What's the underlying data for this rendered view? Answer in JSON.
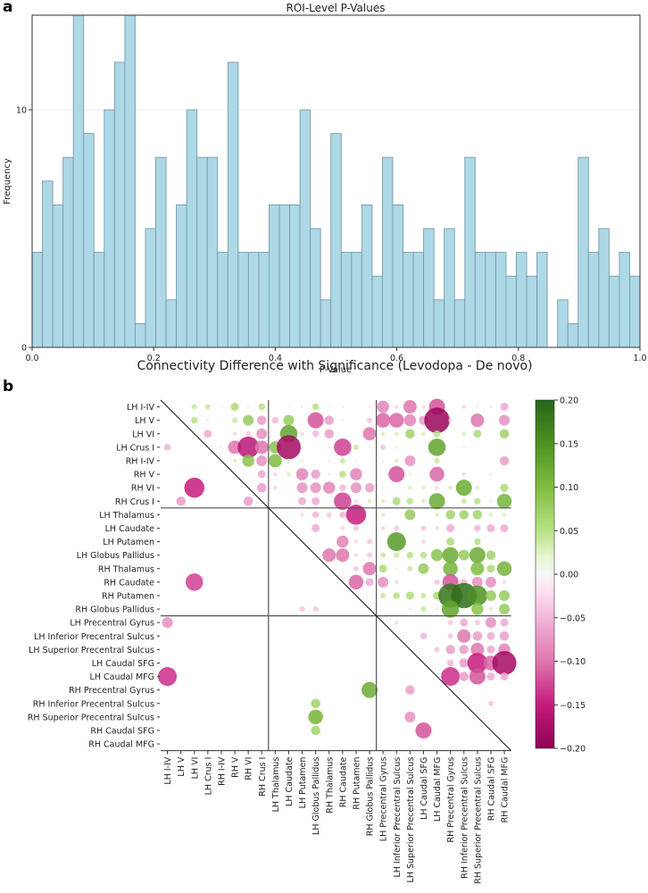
{
  "panels": {
    "a_label": "a",
    "b_label": "b"
  },
  "chart_data": [
    {
      "type": "bar",
      "subtype": "histogram",
      "title": "ROI-Level P-Values",
      "xlabel": "P-Value",
      "ylabel": "Frequency",
      "xlim": [
        0.0,
        1.0
      ],
      "ylim": [
        0,
        14
      ],
      "xticks": [
        "0.0",
        "0.2",
        "0.4",
        "0.6",
        "0.8",
        "1.0"
      ],
      "xtick_values": [
        0.0,
        0.2,
        0.4,
        0.6,
        0.8,
        1.0
      ],
      "yticks": [
        "0",
        "10"
      ],
      "ytick_values": [
        0,
        10
      ],
      "grid": "horizontal",
      "bar_color": "#add8e6",
      "edge_color": "#7a9aa8",
      "bin_range": [
        0.0,
        1.0
      ],
      "counts": [
        4,
        7,
        6,
        8,
        14,
        9,
        4,
        10,
        12,
        14,
        1,
        5,
        8,
        2,
        6,
        10,
        8,
        8,
        4,
        12,
        4,
        4,
        4,
        6,
        6,
        6,
        10,
        5,
        2,
        9,
        4,
        4,
        6,
        3,
        8,
        6,
        4,
        4,
        5,
        2,
        5,
        2,
        8,
        4,
        4,
        4,
        3,
        4,
        3,
        4,
        0,
        2,
        1,
        8,
        4,
        5,
        3,
        4,
        3
      ]
    },
    {
      "type": "heatmap",
      "subtype": "bubble-matrix",
      "title": "Connectivity Difference with Significance (Levodopa - De novo)",
      "labels": [
        "LH I-IV",
        "LH V",
        "LH VI",
        "LH Crus I",
        "RH I-IV",
        "RH V",
        "RH VI",
        "RH Crus I",
        "LH Thalamus",
        "LH Caudate",
        "LH Putamen",
        "LH Globus Pallidus",
        "RH Thalamus",
        "RH Caudate",
        "RH Putamen",
        "RH Globus Pallidus",
        "LH Precentral Gyrus",
        "LH Inferior Precentral Sulcus",
        "LH Superior Precentral Sulcus",
        "LH Caudal SFG",
        "LH Caudal MFG",
        "RH Precentral Gyrus",
        "RH Inferior Precentral Sulcus",
        "RH Superior Precentral Sulcus",
        "RH Caudal SFG",
        "RH Caudal MFG"
      ],
      "group_boundaries_after_index": [
        7,
        15
      ],
      "colorbar": {
        "min": -0.2,
        "max": 0.2,
        "ticks": [
          "0.20",
          "0.15",
          "0.10",
          "0.05",
          "0.00",
          "−0.05",
          "−0.10",
          "−0.15",
          "−0.20"
        ],
        "tick_values": [
          0.2,
          0.15,
          0.1,
          0.05,
          0,
          -0.05,
          -0.1,
          -0.15,
          -0.2
        ],
        "colormap": "PiYG"
      },
      "cells": [
        [
          0,
          2,
          0.04
        ],
        [
          0,
          3,
          0.04
        ],
        [
          0,
          4,
          0.01
        ],
        [
          0,
          5,
          0.06
        ],
        [
          0,
          6,
          0.02
        ],
        [
          0,
          7,
          0.05
        ],
        [
          0,
          9,
          -0.01
        ],
        [
          0,
          10,
          -0.02
        ],
        [
          0,
          11,
          0.05
        ],
        [
          0,
          12,
          -0.01
        ],
        [
          0,
          13,
          0.02
        ],
        [
          0,
          15,
          0.02
        ],
        [
          0,
          16,
          -0.09
        ],
        [
          0,
          17,
          -0.03
        ],
        [
          0,
          18,
          -0.1
        ],
        [
          0,
          19,
          -0.03
        ],
        [
          0,
          20,
          -0.12
        ],
        [
          0,
          22,
          -0.03
        ],
        [
          0,
          23,
          -0.02
        ],
        [
          0,
          24,
          0.02
        ],
        [
          0,
          25,
          -0.06
        ],
        [
          1,
          2,
          0.05
        ],
        [
          1,
          3,
          -0.02
        ],
        [
          1,
          5,
          0.04
        ],
        [
          1,
          6,
          0.08
        ],
        [
          1,
          7,
          -0.07
        ],
        [
          1,
          8,
          -0.05
        ],
        [
          1,
          9,
          0.08
        ],
        [
          1,
          11,
          -0.12
        ],
        [
          1,
          12,
          -0.07
        ],
        [
          1,
          13,
          -0.02
        ],
        [
          1,
          15,
          -0.04
        ],
        [
          1,
          16,
          -0.11
        ],
        [
          1,
          17,
          -0.11
        ],
        [
          1,
          18,
          -0.09
        ],
        [
          1,
          19,
          -0.07
        ],
        [
          1,
          20,
          -0.19
        ],
        [
          1,
          21,
          -0.03
        ],
        [
          1,
          23,
          -0.1
        ],
        [
          1,
          25,
          -0.08
        ],
        [
          2,
          3,
          -0.06
        ],
        [
          2,
          5,
          -0.03
        ],
        [
          2,
          6,
          -0.04
        ],
        [
          2,
          7,
          -0.08
        ],
        [
          2,
          9,
          0.13
        ],
        [
          2,
          10,
          -0.03
        ],
        [
          2,
          11,
          -0.05
        ],
        [
          2,
          12,
          -0.07
        ],
        [
          2,
          15,
          -0.1
        ],
        [
          2,
          16,
          0.03
        ],
        [
          2,
          17,
          0.03
        ],
        [
          2,
          18,
          0.07
        ],
        [
          2,
          19,
          0.03
        ],
        [
          2,
          20,
          0.05
        ],
        [
          2,
          22,
          0.03
        ],
        [
          2,
          23,
          0.06
        ],
        [
          2,
          25,
          0.07
        ],
        [
          3,
          0,
          -0.05
        ],
        [
          3,
          4,
          -0.02
        ],
        [
          3,
          5,
          -0.1
        ],
        [
          3,
          6,
          -0.16
        ],
        [
          3,
          7,
          -0.1
        ],
        [
          3,
          8,
          0.09
        ],
        [
          3,
          9,
          -0.18
        ],
        [
          3,
          10,
          0.02
        ],
        [
          3,
          12,
          0.02
        ],
        [
          3,
          13,
          -0.13
        ],
        [
          3,
          14,
          0.04
        ],
        [
          3,
          15,
          0.02
        ],
        [
          3,
          16,
          -0.04
        ],
        [
          3,
          17,
          0.02
        ],
        [
          3,
          20,
          0.13
        ],
        [
          3,
          22,
          -0.02
        ],
        [
          4,
          5,
          0.03
        ],
        [
          4,
          6,
          0.09
        ],
        [
          4,
          7,
          -0.08
        ],
        [
          4,
          8,
          0.1
        ],
        [
          4,
          9,
          0.03
        ],
        [
          4,
          10,
          0.02
        ],
        [
          4,
          12,
          0.02
        ],
        [
          4,
          13,
          0.04
        ],
        [
          4,
          14,
          0.02
        ],
        [
          4,
          16,
          0.02
        ],
        [
          4,
          17,
          0.03
        ],
        [
          4,
          18,
          -0.08
        ],
        [
          4,
          20,
          0.04
        ],
        [
          4,
          25,
          -0.07
        ],
        [
          5,
          7,
          -0.06
        ],
        [
          5,
          8,
          -0.03
        ],
        [
          5,
          9,
          0.03
        ],
        [
          5,
          10,
          -0.09
        ],
        [
          5,
          11,
          -0.07
        ],
        [
          5,
          12,
          -0.02
        ],
        [
          5,
          13,
          0.05
        ],
        [
          5,
          14,
          -0.09
        ],
        [
          5,
          17,
          -0.12
        ],
        [
          5,
          18,
          -0.02
        ],
        [
          5,
          20,
          -0.11
        ],
        [
          5,
          22,
          -0.03
        ],
        [
          5,
          24,
          -0.02
        ],
        [
          6,
          2,
          -0.15
        ],
        [
          6,
          7,
          -0.07
        ],
        [
          6,
          8,
          -0.03
        ],
        [
          6,
          10,
          -0.08
        ],
        [
          6,
          11,
          -0.08
        ],
        [
          6,
          12,
          -0.09
        ],
        [
          6,
          13,
          -0.05
        ],
        [
          6,
          14,
          -0.08
        ],
        [
          6,
          15,
          -0.07
        ],
        [
          6,
          16,
          -0.02
        ],
        [
          6,
          18,
          0.03
        ],
        [
          6,
          19,
          0.03
        ],
        [
          6,
          20,
          -0.03
        ],
        [
          6,
          21,
          0.03
        ],
        [
          6,
          22,
          0.12
        ],
        [
          6,
          23,
          0.03
        ],
        [
          6,
          25,
          0.06
        ],
        [
          7,
          1,
          -0.07
        ],
        [
          7,
          6,
          -0.07
        ],
        [
          7,
          10,
          -0.06
        ],
        [
          7,
          11,
          -0.06
        ],
        [
          7,
          13,
          -0.13
        ],
        [
          7,
          14,
          -0.03
        ],
        [
          7,
          15,
          0.03
        ],
        [
          7,
          16,
          0.03
        ],
        [
          7,
          17,
          0.06
        ],
        [
          7,
          18,
          0.05
        ],
        [
          7,
          19,
          0.03
        ],
        [
          7,
          20,
          0.12
        ],
        [
          7,
          22,
          0.04
        ],
        [
          7,
          23,
          0.05
        ],
        [
          7,
          24,
          0.02
        ],
        [
          7,
          25,
          0.11
        ],
        [
          8,
          10,
          -0.03
        ],
        [
          8,
          11,
          -0.05
        ],
        [
          8,
          12,
          -0.04
        ],
        [
          8,
          13,
          -0.05
        ],
        [
          8,
          14,
          -0.15
        ],
        [
          8,
          16,
          0.03
        ],
        [
          8,
          18,
          0.08
        ],
        [
          8,
          20,
          0.03
        ],
        [
          8,
          21,
          0.07
        ],
        [
          8,
          22,
          0.07
        ],
        [
          8,
          23,
          0.07
        ],
        [
          8,
          24,
          0.03
        ],
        [
          8,
          25,
          0.03
        ],
        [
          9,
          11,
          -0.06
        ],
        [
          9,
          13,
          -0.03
        ],
        [
          9,
          14,
          -0.04
        ],
        [
          9,
          16,
          -0.03
        ],
        [
          9,
          17,
          -0.04
        ],
        [
          9,
          19,
          -0.04
        ],
        [
          9,
          20,
          -0.03
        ],
        [
          9,
          21,
          -0.06
        ],
        [
          9,
          23,
          -0.05
        ],
        [
          9,
          24,
          -0.06
        ],
        [
          9,
          25,
          -0.06
        ],
        [
          10,
          13,
          -0.09
        ],
        [
          10,
          14,
          -0.03
        ],
        [
          10,
          15,
          -0.04
        ],
        [
          10,
          17,
          0.14
        ],
        [
          10,
          19,
          -0.03
        ],
        [
          10,
          21,
          0.06
        ],
        [
          10,
          23,
          0.05
        ],
        [
          11,
          12,
          -0.1
        ],
        [
          11,
          13,
          -0.1
        ],
        [
          11,
          14,
          -0.03
        ],
        [
          11,
          15,
          -0.04
        ],
        [
          11,
          16,
          0.04
        ],
        [
          11,
          17,
          0.04
        ],
        [
          11,
          18,
          0.05
        ],
        [
          11,
          19,
          0.05
        ],
        [
          11,
          20,
          0.09
        ],
        [
          11,
          21,
          0.12
        ],
        [
          11,
          22,
          0.08
        ],
        [
          11,
          23,
          0.12
        ],
        [
          11,
          24,
          0.07
        ],
        [
          12,
          14,
          -0.04
        ],
        [
          12,
          15,
          -0.1
        ],
        [
          12,
          16,
          0.06
        ],
        [
          12,
          17,
          0.02
        ],
        [
          12,
          18,
          0.04
        ],
        [
          12,
          19,
          0.08
        ],
        [
          12,
          21,
          0.11
        ],
        [
          12,
          22,
          0.02
        ],
        [
          12,
          23,
          0.1
        ],
        [
          12,
          24,
          0.06
        ],
        [
          12,
          25,
          0.11
        ],
        [
          13,
          2,
          -0.13
        ],
        [
          13,
          14,
          -0.11
        ],
        [
          13,
          15,
          -0.06
        ],
        [
          13,
          16,
          -0.08
        ],
        [
          13,
          17,
          -0.03
        ],
        [
          13,
          20,
          -0.04
        ],
        [
          13,
          21,
          -0.12
        ],
        [
          13,
          22,
          -0.05
        ],
        [
          13,
          23,
          -0.08
        ],
        [
          13,
          24,
          -0.08
        ],
        [
          13,
          25,
          -0.03
        ],
        [
          14,
          16,
          0.04
        ],
        [
          14,
          17,
          0.05
        ],
        [
          14,
          18,
          0.06
        ],
        [
          14,
          19,
          0.04
        ],
        [
          14,
          20,
          0.06
        ],
        [
          14,
          21,
          0.18
        ],
        [
          14,
          22,
          0.19
        ],
        [
          14,
          23,
          0.15
        ],
        [
          14,
          24,
          0.08
        ],
        [
          14,
          25,
          0.08
        ],
        [
          15,
          10,
          -0.04
        ],
        [
          15,
          11,
          -0.04
        ],
        [
          15,
          18,
          0.02
        ],
        [
          15,
          19,
          0.04
        ],
        [
          15,
          20,
          0.02
        ],
        [
          15,
          21,
          0.13
        ],
        [
          15,
          22,
          0.02
        ],
        [
          15,
          23,
          0.09
        ],
        [
          15,
          24,
          0.03
        ],
        [
          15,
          25,
          0.08
        ],
        [
          16,
          0,
          -0.08
        ],
        [
          16,
          17,
          -0.03
        ],
        [
          16,
          21,
          -0.04
        ],
        [
          16,
          22,
          -0.06
        ],
        [
          16,
          23,
          -0.04
        ],
        [
          16,
          24,
          -0.08
        ],
        [
          16,
          25,
          -0.06
        ],
        [
          17,
          19,
          -0.05
        ],
        [
          17,
          21,
          -0.04
        ],
        [
          17,
          22,
          -0.1
        ],
        [
          17,
          23,
          -0.07
        ],
        [
          17,
          24,
          -0.06
        ],
        [
          17,
          25,
          -0.07
        ],
        [
          18,
          20,
          -0.04
        ],
        [
          18,
          21,
          -0.07
        ],
        [
          18,
          22,
          -0.07
        ],
        [
          18,
          23,
          -0.1
        ],
        [
          18,
          24,
          -0.06
        ],
        [
          18,
          25,
          -0.09
        ],
        [
          19,
          21,
          -0.05
        ],
        [
          19,
          22,
          -0.07
        ],
        [
          19,
          23,
          -0.15
        ],
        [
          19,
          24,
          -0.11
        ],
        [
          19,
          25,
          -0.18
        ],
        [
          20,
          0,
          -0.14
        ],
        [
          20,
          21,
          -0.14
        ],
        [
          20,
          22,
          -0.07
        ],
        [
          20,
          23,
          -0.12
        ],
        [
          20,
          24,
          -0.06
        ],
        [
          20,
          25,
          -0.06
        ],
        [
          21,
          15,
          0.12
        ],
        [
          21,
          18,
          -0.07
        ],
        [
          22,
          11,
          0.07
        ],
        [
          22,
          24,
          -0.04
        ],
        [
          23,
          11,
          0.11
        ],
        [
          23,
          18,
          -0.08
        ],
        [
          24,
          11,
          0.07
        ],
        [
          24,
          19,
          -0.12
        ]
      ]
    }
  ]
}
